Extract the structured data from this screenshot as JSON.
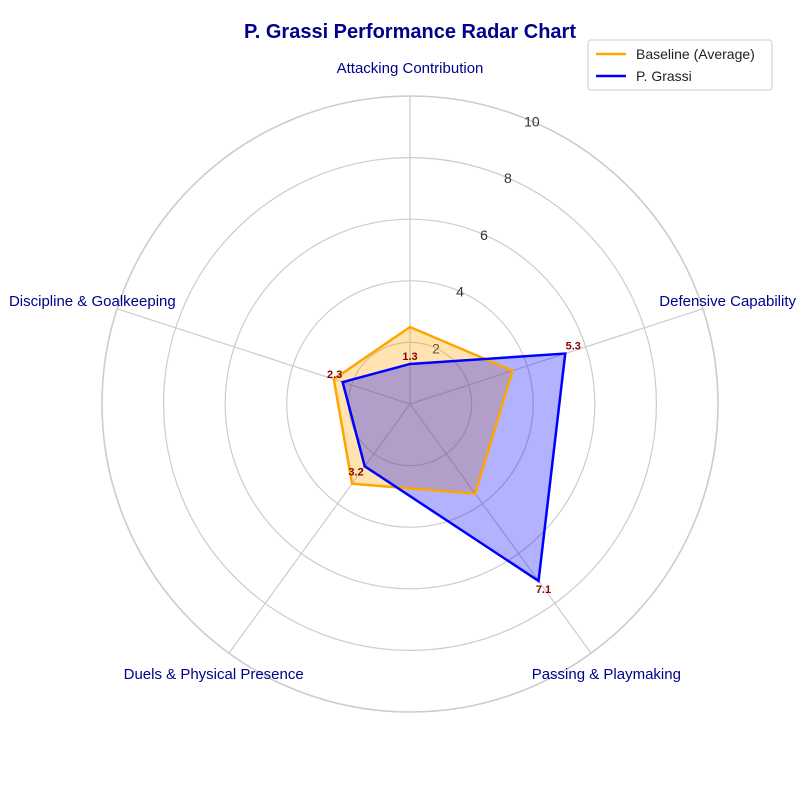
{
  "chart_data": {
    "type": "radar",
    "title": "P. Grassi Performance Radar Chart",
    "categories": [
      "Attacking Contribution",
      "Defensive Capability",
      "Passing & Playmaking",
      "Duels & Physical Presence",
      "Discipline & Goalkeeping"
    ],
    "rlim": [
      0,
      10
    ],
    "r_ticks": [
      "2",
      "4",
      "6",
      "8",
      "10"
    ],
    "grid": true,
    "legend_position": "top-right",
    "series": [
      {
        "name": "Baseline (Average)",
        "values": [
          2.5,
          3.5,
          3.6,
          3.2,
          2.6
        ],
        "color": "#ffa500",
        "fill": "#ffa500"
      },
      {
        "name": "P. Grassi",
        "values": [
          1.3,
          5.3,
          7.1,
          2.5,
          2.3
        ],
        "color": "#0000ff",
        "fill": "#0000ff",
        "point_labels": [
          "1.3",
          "5.3",
          "7.1",
          "",
          "2.3"
        ]
      }
    ],
    "extra_labels": [
      {
        "category": "Duels & Physical Presence",
        "value": 3.2,
        "text": "3.2"
      }
    ]
  }
}
